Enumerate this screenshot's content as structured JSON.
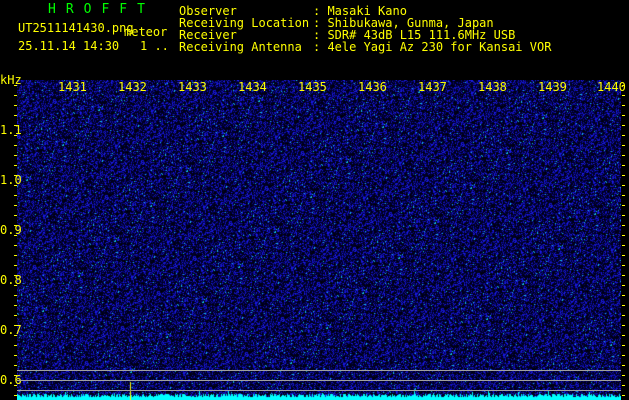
{
  "header": {
    "app_title": "HROFFT",
    "filename": "UT2511141430.png",
    "mode": "meteor",
    "datetime": "25.11.14 14:30",
    "counter": "1 ..",
    "fields": [
      {
        "label": "Observer",
        "value": ": Masaki Kano"
      },
      {
        "label": "Receiving Location",
        "value": ": Shibukawa, Gunma, Japan"
      },
      {
        "label": "Receiver",
        "value": ": SDR# 43dB L15 111.6MHz USB"
      },
      {
        "label": "Receiving Antenna",
        "value": ": 4ele Yagi Az 230 for Kansai VOR"
      }
    ]
  },
  "spectrogram": {
    "unit_label": "kHz",
    "time_labels": [
      "1431",
      "1432",
      "1433",
      "1434",
      "1435",
      "1436",
      "1437",
      "1438",
      "1439",
      "1440"
    ],
    "freq_labels": [
      "1.1",
      "1.0",
      "0.9",
      "0.8",
      "0.7",
      "0.6"
    ],
    "colors": {
      "background": "#000000",
      "noise": "#1a1aff",
      "text": "#ffff00",
      "title": "#00ff00",
      "level_bar": "#00ffff",
      "guide_lines": "#a0a0a0"
    }
  }
}
